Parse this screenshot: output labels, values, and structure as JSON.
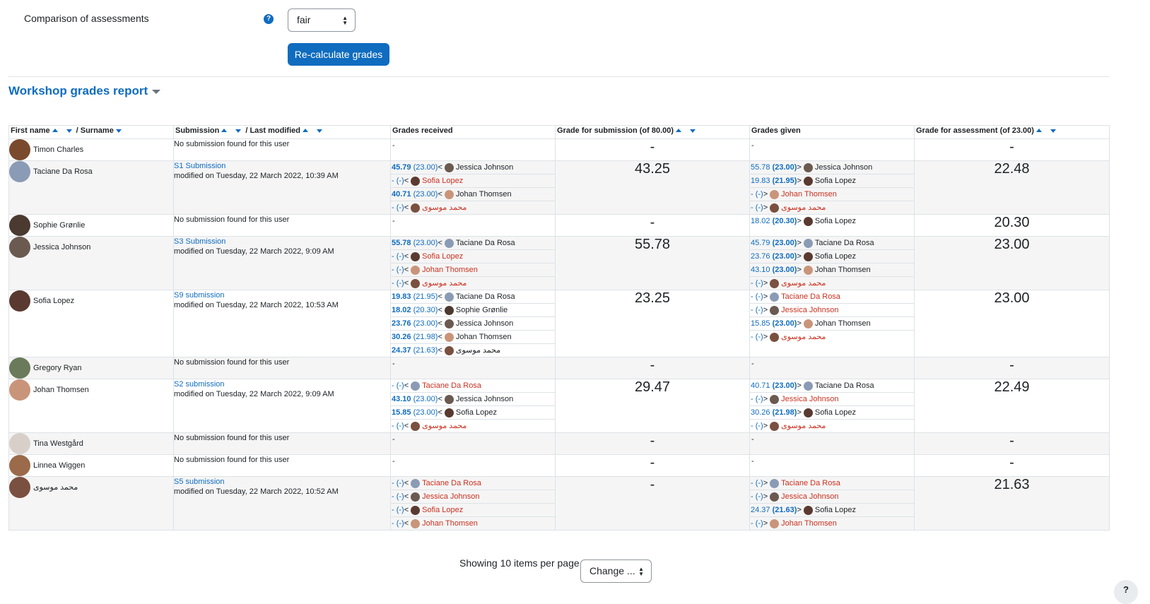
{
  "settings": {
    "comparison_label": "Comparison of assessments",
    "comparison_value": "fair",
    "recalc_label": "Re-calculate grades"
  },
  "report": {
    "title": "Workshop grades report",
    "headers": {
      "first_name": "First name",
      "surname": "/ Surname",
      "submission": "Submission",
      "last_modified": "/ Last modified",
      "grades_received": "Grades received",
      "grade_submission": "Grade for submission (of 80.00)",
      "grades_given": "Grades given",
      "grade_assessment": "Grade for assessment (of 23.00)"
    },
    "rows": [
      {
        "name": "Timon Charles",
        "avatar_color": "#7a4a2e",
        "sub_title": "",
        "sub_modified": "No submission found for this user",
        "received": [],
        "grade": "-",
        "given": [],
        "assess": "-"
      },
      {
        "name": "Taciane Da Rosa",
        "avatar_color": "#8a9bb5",
        "sub_title": "S1 Submission",
        "sub_modified": "modified on Tuesday, 22 March 2022, 10:39 AM",
        "received": [
          {
            "g": "45.79",
            "o": "(23.00)",
            "d": "<",
            "who": "Jessica Johnson",
            "c": "#6b5a50",
            "m": false
          },
          {
            "g": "- (-)",
            "o": "",
            "d": "<",
            "who": "Sofia Lopez",
            "c": "#5a3a30",
            "m": true
          },
          {
            "g": "40.71",
            "o": "(23.00)",
            "d": "<",
            "who": "Johan Thomsen",
            "c": "#c9957a",
            "m": false
          },
          {
            "g": "- (-)",
            "o": "",
            "d": "<",
            "who": "محمد موسوی",
            "c": "#7a5040",
            "m": true
          }
        ],
        "grade": "43.25",
        "given": [
          {
            "g": "55.78",
            "o": "(23.00)",
            "d": ">",
            "who": "Jessica Johnson",
            "c": "#6b5a50",
            "m": false
          },
          {
            "g": "19.83",
            "o": "(21.95)",
            "d": ">",
            "who": "Sofia Lopez",
            "c": "#5a3a30",
            "m": false
          },
          {
            "g": "- (-)",
            "o": "",
            "d": ">",
            "who": "Johan Thomsen",
            "c": "#c9957a",
            "m": true
          },
          {
            "g": "- (-)",
            "o": "",
            "d": ">",
            "who": "محمد موسوی",
            "c": "#7a5040",
            "m": true
          }
        ],
        "assess": "22.48"
      },
      {
        "name": "Sophie Grønlie",
        "avatar_color": "#4a3a30",
        "sub_title": "",
        "sub_modified": "No submission found for this user",
        "received": [],
        "grade": "-",
        "given": [
          {
            "g": "18.02",
            "o": "(20.30)",
            "d": ">",
            "who": "Sofia Lopez",
            "c": "#5a3a30",
            "m": false
          }
        ],
        "assess": "20.30"
      },
      {
        "name": "Jessica Johnson",
        "avatar_color": "#6b5a50",
        "sub_title": "S3 Submission",
        "sub_modified": "modified on Tuesday, 22 March 2022, 9:09 AM",
        "received": [
          {
            "g": "55.78",
            "o": "(23.00)",
            "d": "<",
            "who": "Taciane Da Rosa",
            "c": "#8a9bb5",
            "m": false
          },
          {
            "g": "- (-)",
            "o": "",
            "d": "<",
            "who": "Sofia Lopez",
            "c": "#5a3a30",
            "m": true
          },
          {
            "g": "- (-)",
            "o": "",
            "d": "<",
            "who": "Johan Thomsen",
            "c": "#c9957a",
            "m": true
          },
          {
            "g": "- (-)",
            "o": "",
            "d": "<",
            "who": "محمد موسوی",
            "c": "#7a5040",
            "m": true
          }
        ],
        "grade": "55.78",
        "given": [
          {
            "g": "45.79",
            "o": "(23.00)",
            "d": ">",
            "who": "Taciane Da Rosa",
            "c": "#8a9bb5",
            "m": false
          },
          {
            "g": "23.76",
            "o": "(23.00)",
            "d": ">",
            "who": "Sofia Lopez",
            "c": "#5a3a30",
            "m": false
          },
          {
            "g": "43.10",
            "o": "(23.00)",
            "d": ">",
            "who": "Johan Thomsen",
            "c": "#c9957a",
            "m": false
          },
          {
            "g": "- (-)",
            "o": "",
            "d": ">",
            "who": "محمد موسوی",
            "c": "#7a5040",
            "m": true
          }
        ],
        "assess": "23.00"
      },
      {
        "name": "Sofia Lopez",
        "avatar_color": "#5a3a30",
        "sub_title": "S9 submission",
        "sub_modified": "modified on Tuesday, 22 March 2022, 10:53 AM",
        "received": [
          {
            "g": "19.83",
            "o": "(21.95)",
            "d": "<",
            "who": "Taciane Da Rosa",
            "c": "#8a9bb5",
            "m": false
          },
          {
            "g": "18.02",
            "o": "(20.30)",
            "d": "<",
            "who": "Sophie Grønlie",
            "c": "#4a3a30",
            "m": false
          },
          {
            "g": "23.76",
            "o": "(23.00)",
            "d": "<",
            "who": "Jessica Johnson",
            "c": "#6b5a50",
            "m": false
          },
          {
            "g": "30.26",
            "o": "(21.98)",
            "d": "<",
            "who": "Johan Thomsen",
            "c": "#c9957a",
            "m": false
          },
          {
            "g": "24.37",
            "o": "(21.63)",
            "d": "<",
            "who": "محمد موسوی",
            "c": "#7a5040",
            "m": false
          }
        ],
        "grade": "23.25",
        "given": [
          {
            "g": "- (-)",
            "o": "",
            "d": ">",
            "who": "Taciane Da Rosa",
            "c": "#8a9bb5",
            "m": true
          },
          {
            "g": "- (-)",
            "o": "",
            "d": ">",
            "who": "Jessica Johnson",
            "c": "#6b5a50",
            "m": true
          },
          {
            "g": "15.85",
            "o": "(23.00)",
            "d": ">",
            "who": "Johan Thomsen",
            "c": "#c9957a",
            "m": false
          },
          {
            "g": "- (-)",
            "o": "",
            "d": ">",
            "who": "محمد موسوی",
            "c": "#7a5040",
            "m": true
          }
        ],
        "assess": "23.00"
      },
      {
        "name": "Gregory Ryan",
        "avatar_color": "#6a7a5a",
        "sub_title": "",
        "sub_modified": "No submission found for this user",
        "received": [],
        "grade": "-",
        "given": [],
        "assess": "-"
      },
      {
        "name": "Johan Thomsen",
        "avatar_color": "#c9957a",
        "sub_title": "S2 submission",
        "sub_modified": "modified on Tuesday, 22 March 2022, 9:09 AM",
        "received": [
          {
            "g": "- (-)",
            "o": "",
            "d": "<",
            "who": "Taciane Da Rosa",
            "c": "#8a9bb5",
            "m": true
          },
          {
            "g": "43.10",
            "o": "(23.00)",
            "d": "<",
            "who": "Jessica Johnson",
            "c": "#6b5a50",
            "m": false
          },
          {
            "g": "15.85",
            "o": "(23.00)",
            "d": "<",
            "who": "Sofia Lopez",
            "c": "#5a3a30",
            "m": false
          },
          {
            "g": "- (-)",
            "o": "",
            "d": "<",
            "who": "محمد موسوی",
            "c": "#7a5040",
            "m": true
          }
        ],
        "grade": "29.47",
        "given": [
          {
            "g": "40.71",
            "o": "(23.00)",
            "d": ">",
            "who": "Taciane Da Rosa",
            "c": "#8a9bb5",
            "m": false
          },
          {
            "g": "- (-)",
            "o": "",
            "d": ">",
            "who": "Jessica Johnson",
            "c": "#6b5a50",
            "m": true
          },
          {
            "g": "30.26",
            "o": "(21.98)",
            "d": ">",
            "who": "Sofia Lopez",
            "c": "#5a3a30",
            "m": false
          },
          {
            "g": "- (-)",
            "o": "",
            "d": ">",
            "who": "محمد موسوی",
            "c": "#7a5040",
            "m": true
          }
        ],
        "assess": "22.49"
      },
      {
        "name": "Tina Westgård",
        "avatar_color": "#d8d0c8",
        "sub_title": "",
        "sub_modified": "No submission found for this user",
        "received": [],
        "grade": "-",
        "given": [],
        "assess": "-"
      },
      {
        "name": "Linnea Wiggen",
        "avatar_color": "#9a6a4a",
        "sub_title": "",
        "sub_modified": "No submission found for this user",
        "received": [],
        "grade": "-",
        "given": [],
        "assess": "-"
      },
      {
        "name": "محمد موسوی",
        "avatar_color": "#7a5040",
        "sub_title": "S5 submission",
        "sub_modified": "modified on Tuesday, 22 March 2022, 10:52 AM",
        "received": [
          {
            "g": "- (-)",
            "o": "",
            "d": "<",
            "who": "Taciane Da Rosa",
            "c": "#8a9bb5",
            "m": true
          },
          {
            "g": "- (-)",
            "o": "",
            "d": "<",
            "who": "Jessica Johnson",
            "c": "#6b5a50",
            "m": true
          },
          {
            "g": "- (-)",
            "o": "",
            "d": "<",
            "who": "Sofia Lopez",
            "c": "#5a3a30",
            "m": true
          },
          {
            "g": "- (-)",
            "o": "",
            "d": "<",
            "who": "Johan Thomsen",
            "c": "#c9957a",
            "m": true
          }
        ],
        "grade": "-",
        "given": [
          {
            "g": "- (-)",
            "o": "",
            "d": ">",
            "who": "Taciane Da Rosa",
            "c": "#8a9bb5",
            "m": true
          },
          {
            "g": "- (-)",
            "o": "",
            "d": ">",
            "who": "Jessica Johnson",
            "c": "#6b5a50",
            "m": true
          },
          {
            "g": "24.37",
            "o": "(21.63)",
            "d": ">",
            "who": "Sofia Lopez",
            "c": "#5a3a30",
            "m": false
          },
          {
            "g": "- (-)",
            "o": "",
            "d": ">",
            "who": "Johan Thomsen",
            "c": "#c9957a",
            "m": true
          }
        ],
        "assess": "21.63"
      }
    ],
    "empty_value": "-"
  },
  "pager": {
    "label": "Showing 10 items per page",
    "change_label": "Change ..."
  },
  "help_fab": "?"
}
